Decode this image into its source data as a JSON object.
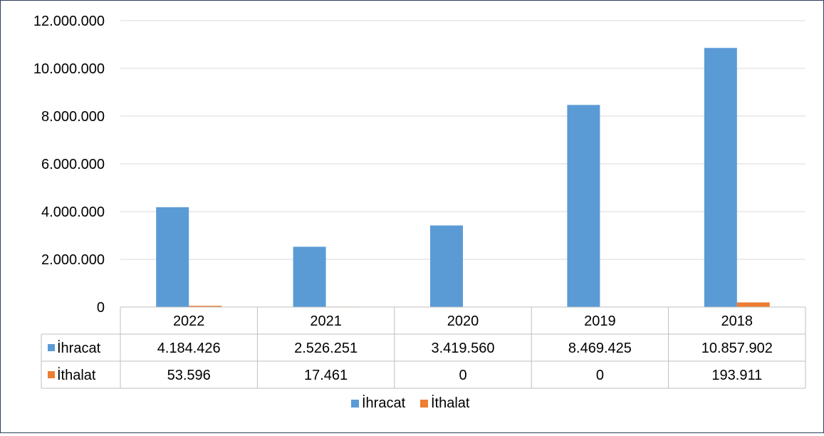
{
  "chart_data": {
    "type": "bar",
    "categories": [
      "2022",
      "2021",
      "2020",
      "2019",
      "2018"
    ],
    "series": [
      {
        "name": "İhracat",
        "values": [
          4184426,
          2526251,
          3419560,
          8469425,
          10857902
        ],
        "color": "#5b9bd5"
      },
      {
        "name": "İthalat",
        "values": [
          53596,
          17461,
          0,
          0,
          193911
        ],
        "color": "#ed7d31"
      }
    ],
    "table": {
      "rows": [
        {
          "series": "İhracat",
          "cells": [
            "4.184.426",
            "2.526.251",
            "3.419.560",
            "8.469.425",
            "10.857.902"
          ]
        },
        {
          "series": "İthalat",
          "cells": [
            "53.596",
            "17.461",
            "0",
            "0",
            "193.911"
          ]
        }
      ]
    },
    "y_ticks": [
      {
        "value": 0,
        "label": "0"
      },
      {
        "value": 2000000,
        "label": "2.000.000"
      },
      {
        "value": 4000000,
        "label": "4.000.000"
      },
      {
        "value": 6000000,
        "label": "6.000.000"
      },
      {
        "value": 8000000,
        "label": "8.000.000"
      },
      {
        "value": 10000000,
        "label": "10.000.000"
      },
      {
        "value": 12000000,
        "label": "12.000.000"
      }
    ],
    "ylim": [
      0,
      12000000
    ],
    "grid": true,
    "legend": {
      "placement": "bottom",
      "entries": [
        "İhracat",
        "İthalat"
      ]
    },
    "title": "",
    "xlabel": "",
    "ylabel": ""
  }
}
